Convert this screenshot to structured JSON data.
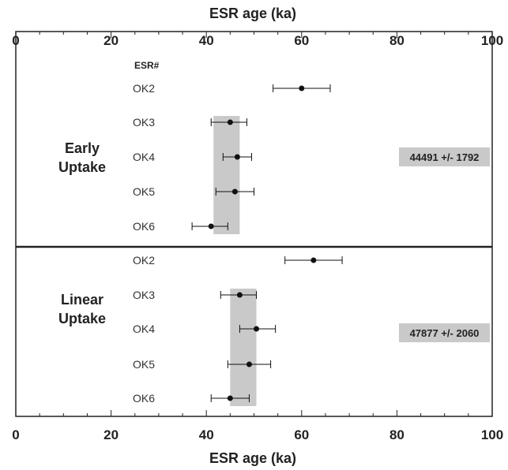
{
  "chart_data": {
    "type": "scatter",
    "xlabel": "ESR age (ka)",
    "xlim": [
      0,
      100
    ],
    "x_ticks": [
      0,
      20,
      40,
      60,
      80,
      100
    ],
    "column_header": "ESR#",
    "grid": false,
    "error_bars": true,
    "colors": {
      "point": "#111111",
      "band": "#c9c9c9",
      "frame": "#222222"
    },
    "panels": [
      {
        "name": "Early Uptake",
        "label_lines": [
          "Early",
          "Uptake"
        ],
        "mean_label": "44491 +/- 1792",
        "band": [
          41.5,
          47
        ],
        "samples": [
          {
            "id": "OK2",
            "value": 60,
            "err_low": 54,
            "err_high": 66
          },
          {
            "id": "OK3",
            "value": 45,
            "err_low": 41,
            "err_high": 48.5
          },
          {
            "id": "OK4",
            "value": 46.5,
            "err_low": 43.5,
            "err_high": 49.5
          },
          {
            "id": "OK5",
            "value": 46,
            "err_low": 42,
            "err_high": 50
          },
          {
            "id": "OK6",
            "value": 41,
            "err_low": 37,
            "err_high": 44.5
          }
        ]
      },
      {
        "name": "Linear Uptake",
        "label_lines": [
          "Linear",
          "Uptake"
        ],
        "mean_label": "47877 +/- 2060",
        "band": [
          45,
          50.5
        ],
        "samples": [
          {
            "id": "OK2",
            "value": 62.5,
            "err_low": 56.5,
            "err_high": 68.5
          },
          {
            "id": "OK3",
            "value": 47,
            "err_low": 43,
            "err_high": 50.5
          },
          {
            "id": "OK4",
            "value": 50.5,
            "err_low": 47,
            "err_high": 54.5
          },
          {
            "id": "OK5",
            "value": 49,
            "err_low": 44.5,
            "err_high": 53.5
          },
          {
            "id": "OK6",
            "value": 45,
            "err_low": 41,
            "err_high": 49
          }
        ]
      }
    ]
  }
}
